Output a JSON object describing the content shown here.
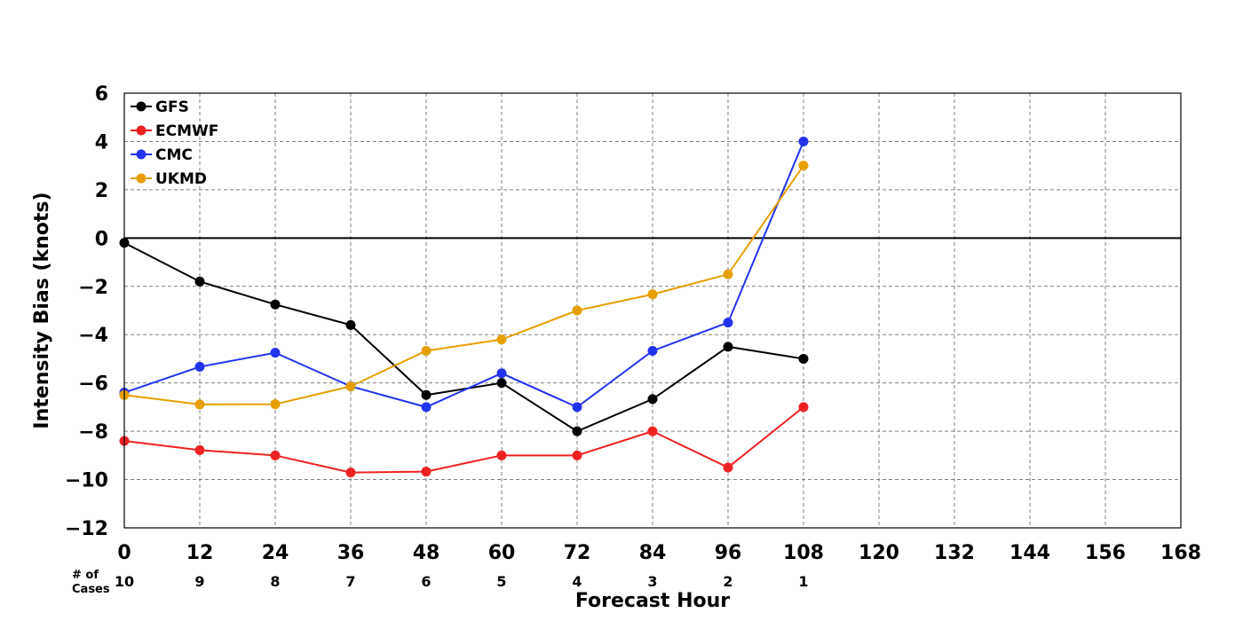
{
  "chart_data": {
    "type": "line",
    "xlabel": "Forecast Hour",
    "ylabel": "Intensity Bias (knots)",
    "xlim": [
      0,
      168
    ],
    "ylim": [
      -12,
      6
    ],
    "x_ticks": [
      0,
      12,
      24,
      36,
      48,
      60,
      72,
      84,
      96,
      108,
      120,
      132,
      144,
      156,
      168
    ],
    "y_ticks": [
      -12,
      -10,
      -8,
      -6,
      -4,
      -2,
      0,
      2,
      4,
      6
    ],
    "grid": true,
    "legend_position": "top-left",
    "cases_label_line1": "# of",
    "cases_label_line2": "Cases",
    "cases": [
      {
        "x": 0,
        "n": "10"
      },
      {
        "x": 12,
        "n": "9"
      },
      {
        "x": 24,
        "n": "8"
      },
      {
        "x": 36,
        "n": "7"
      },
      {
        "x": 48,
        "n": "6"
      },
      {
        "x": 60,
        "n": "5"
      },
      {
        "x": 72,
        "n": "4"
      },
      {
        "x": 84,
        "n": "3"
      },
      {
        "x": 96,
        "n": "2"
      },
      {
        "x": 108,
        "n": "1"
      }
    ],
    "x": [
      0,
      12,
      24,
      36,
      48,
      60,
      72,
      84,
      96,
      108
    ],
    "series": [
      {
        "name": "GFS",
        "color": "#000000",
        "values": [
          -0.2,
          -1.8,
          -2.75,
          -3.6,
          -6.5,
          -6.0,
          -8.0,
          -6.67,
          -4.5,
          -5.0
        ]
      },
      {
        "name": "ECMWF",
        "color": "#ee2222",
        "values": [
          -8.4,
          -8.78,
          -9.0,
          -9.71,
          -9.67,
          -9.0,
          -9.0,
          -8.0,
          -9.5,
          -7.0
        ]
      },
      {
        "name": "CMC",
        "color": "#2233ee",
        "values": [
          -6.4,
          -5.33,
          -4.75,
          -6.14,
          -7.0,
          -5.6,
          -7.0,
          -4.67,
          -3.5,
          4.0
        ]
      },
      {
        "name": "UKMD",
        "color": "#e69f00",
        "values": [
          -6.5,
          -6.89,
          -6.88,
          -6.14,
          -4.67,
          -4.2,
          -3.0,
          -2.33,
          -1.5,
          3.0
        ]
      }
    ]
  }
}
